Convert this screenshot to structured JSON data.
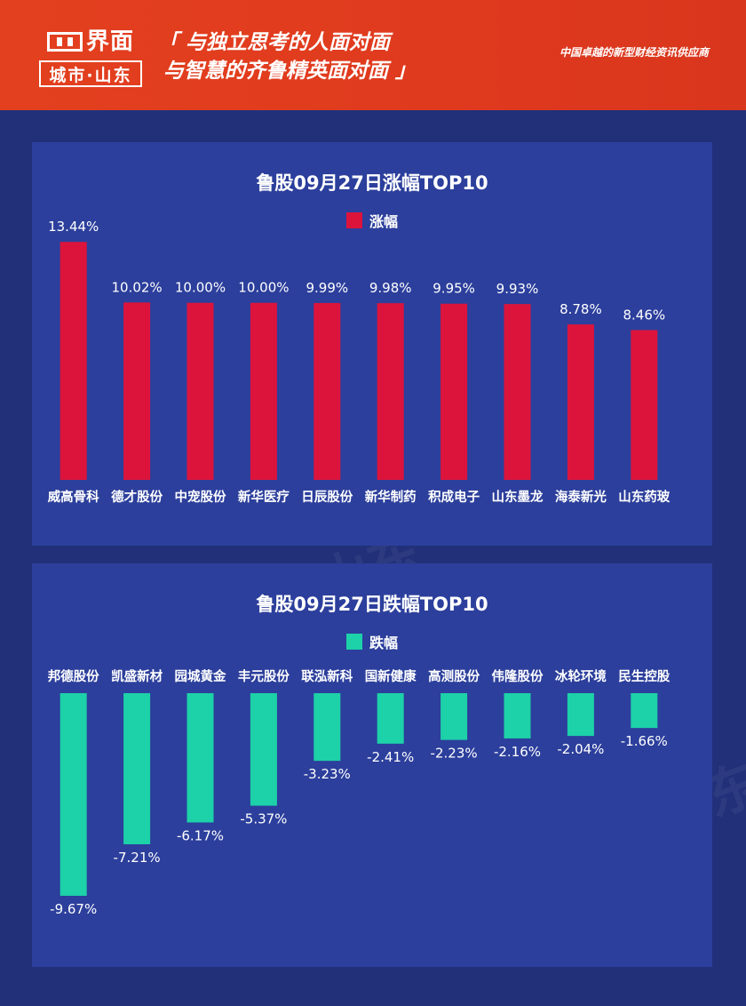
{
  "header": {
    "logo_name": "界面",
    "logo_sub": "城市·山东",
    "slogan_line1": "「 与独立思考的人面对面",
    "slogan_line2": "与智慧的齐鲁精英面对面 」",
    "tagline": "中国卓越的新型财经资讯供应商"
  },
  "colors": {
    "header_bg": "#e03a1e",
    "page_bg": "#22307a",
    "panel_bg": "#2c3f9c",
    "gain_bar": "#dc143c",
    "loss_bar": "#1dd1a8"
  },
  "chart_data": [
    {
      "type": "bar",
      "title": "鲁股09月27日涨幅TOP10",
      "legend": "涨幅",
      "categories": [
        "威高骨科",
        "德才股份",
        "中宠股份",
        "新华医疗",
        "日辰股份",
        "新华制药",
        "积成电子",
        "山东墨龙",
        "海泰新光",
        "山东药玻"
      ],
      "values": [
        13.44,
        10.02,
        10.0,
        10.0,
        9.99,
        9.98,
        9.95,
        9.93,
        8.78,
        8.46
      ],
      "value_labels": [
        "13.44%",
        "10.02%",
        "10.00%",
        "10.00%",
        "9.99%",
        "9.98%",
        "9.95%",
        "9.93%",
        "8.78%",
        "8.46%"
      ],
      "ylim": [
        0,
        14.6
      ]
    },
    {
      "type": "bar",
      "title": "鲁股09月27日跌幅TOP10",
      "legend": "跌幅",
      "categories": [
        "邦德股份",
        "凯盛新材",
        "园城黄金",
        "丰元股份",
        "联泓新科",
        "国新健康",
        "高测股份",
        "伟隆股份",
        "冰轮环境",
        "民生控股"
      ],
      "values": [
        -9.67,
        -7.21,
        -6.17,
        -5.37,
        -3.23,
        -2.41,
        -2.23,
        -2.16,
        -2.04,
        -1.66
      ],
      "value_labels": [
        "-9.67%",
        "-7.21%",
        "-6.17%",
        "-5.37%",
        "-3.23%",
        "-2.41%",
        "-2.23%",
        "-2.16%",
        "-2.04%",
        "-1.66%"
      ],
      "ylim": [
        -10.2,
        0
      ]
    }
  ]
}
